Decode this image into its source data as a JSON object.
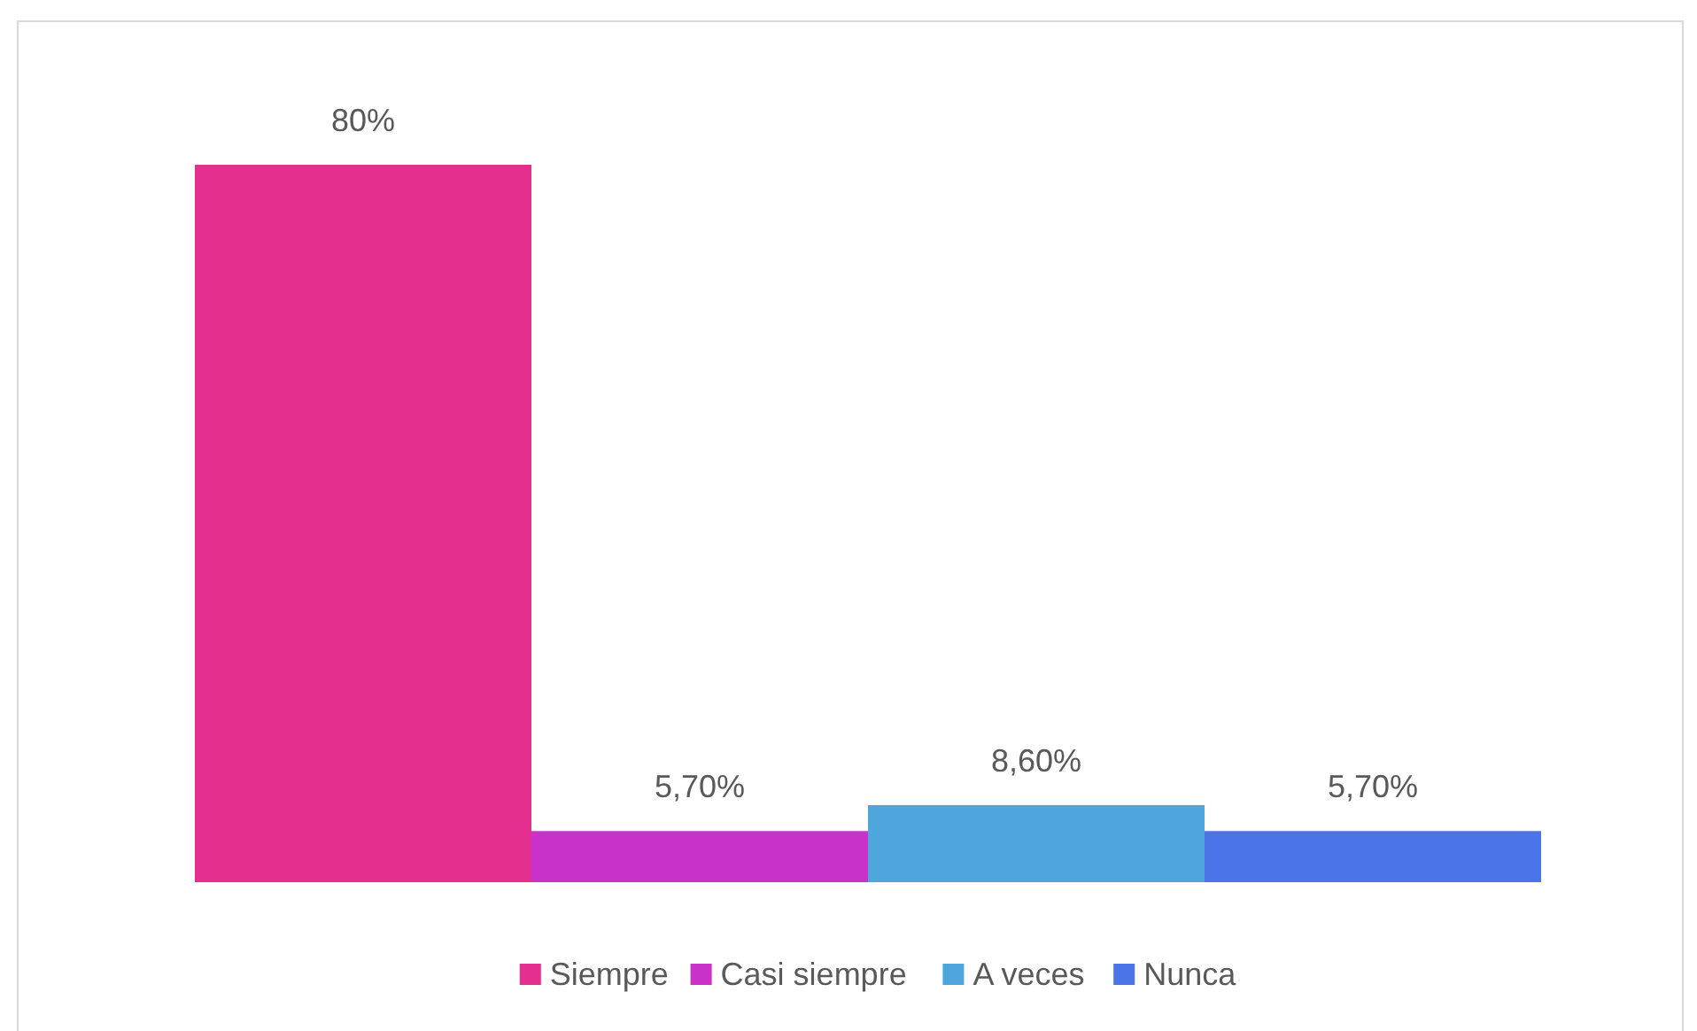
{
  "chart_data": {
    "type": "bar",
    "categories": [
      null
    ],
    "series": [
      {
        "name": "Siempre",
        "color": "#e3308f",
        "values": [
          80
        ],
        "value_labels": [
          "80%"
        ]
      },
      {
        "name": "Casi siempre",
        "color": "#c832c8",
        "values": [
          5.7
        ],
        "value_labels": [
          "5,70%"
        ]
      },
      {
        "name": "A veces",
        "color": "#4ea6dc",
        "values": [
          8.6
        ],
        "value_labels": [
          "8,60%"
        ]
      },
      {
        "name": "Nunca",
        "color": "#4a74e8",
        "values": [
          5.7
        ],
        "value_labels": [
          "5,70%"
        ]
      }
    ],
    "legend": "bottom"
  }
}
